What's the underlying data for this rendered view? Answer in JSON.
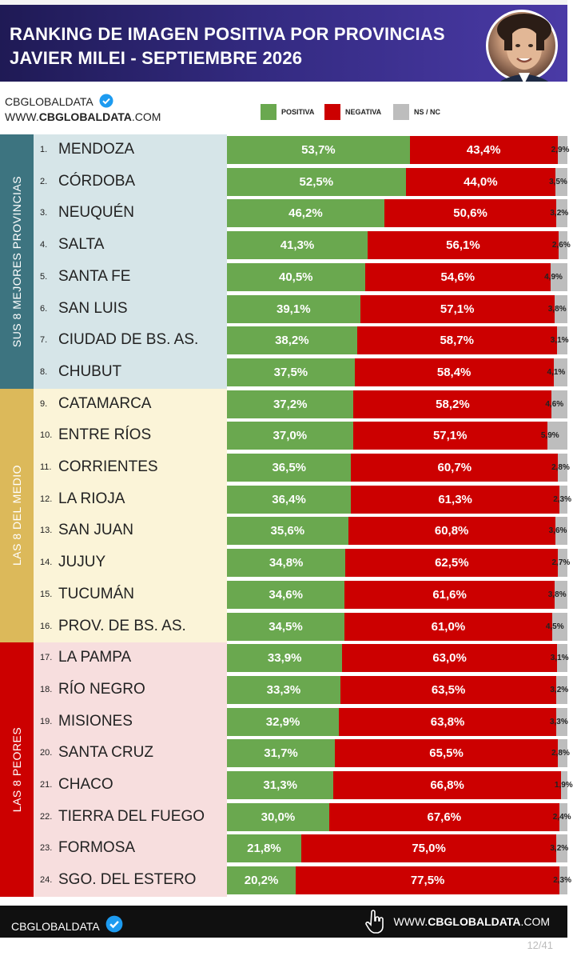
{
  "header": {
    "title_line1": "RANKING DE IMAGEN POSITIVA POR PROVINCIAS",
    "title_line2": "JAVIER MILEI - SEPTIEMBRE 2026"
  },
  "brand": {
    "name": "CBGLOBALDATA",
    "url_prefix": "WWW.",
    "url_bold": "CBGLOBALDATA",
    "url_suffix": ".COM"
  },
  "footer": {
    "brand": "CBGLOBALDATA",
    "url_prefix": "WWW.",
    "url_bold": "CBGLOBALDATA",
    "url_suffix": ".COM",
    "page": "12/41"
  },
  "colors": {
    "positive": "#6aa84f",
    "negative": "#cc0000",
    "nsnc": "#bdbdbd",
    "group_top": "#3d7480",
    "group_mid": "#dcb95a",
    "group_bottom": "#cc0000",
    "bg_top": "#d6e5e8",
    "bg_mid": "#fbf4d8",
    "bg_bottom": "#f7dede"
  },
  "chart_data": {
    "type": "bar",
    "stacked": true,
    "orientation": "horizontal",
    "title": "RANKING DE IMAGEN POSITIVA POR PROVINCIAS",
    "subtitle": "JAVIER MILEI - SEPTIEMBRE 2026",
    "legend": [
      "POSITIVA",
      "NEGATIVA",
      "NS / NC"
    ],
    "legend_position": "top",
    "groups": [
      {
        "label": "SUS 8 MEJORES PROVINCIAS",
        "from": 1,
        "to": 8
      },
      {
        "label": "LAS 8 DEL MEDIO",
        "from": 9,
        "to": 16
      },
      {
        "label": "LAS 8 PEORES",
        "from": 17,
        "to": 24
      }
    ],
    "rows": [
      {
        "rank": "1.",
        "name": "MENDOZA",
        "pos": 53.7,
        "neg": 43.4,
        "ns": 2.9,
        "pos_label": "53,7%",
        "neg_label": "43,4%",
        "ns_label": "2,9%"
      },
      {
        "rank": "2.",
        "name": "CÓRDOBA",
        "pos": 52.5,
        "neg": 44.0,
        "ns": 3.5,
        "pos_label": "52,5%",
        "neg_label": "44,0%",
        "ns_label": "3,5%"
      },
      {
        "rank": "3.",
        "name": "NEUQUÉN",
        "pos": 46.2,
        "neg": 50.6,
        "ns": 3.2,
        "pos_label": "46,2%",
        "neg_label": "50,6%",
        "ns_label": "3,2%"
      },
      {
        "rank": "4.",
        "name": "SALTA",
        "pos": 41.3,
        "neg": 56.1,
        "ns": 2.6,
        "pos_label": "41,3%",
        "neg_label": "56,1%",
        "ns_label": "2,6%"
      },
      {
        "rank": "5.",
        "name": "SANTA FE",
        "pos": 40.5,
        "neg": 54.6,
        "ns": 4.9,
        "pos_label": "40,5%",
        "neg_label": "54,6%",
        "ns_label": "4,9%"
      },
      {
        "rank": "6.",
        "name": "SAN LUIS",
        "pos": 39.1,
        "neg": 57.1,
        "ns": 3.8,
        "pos_label": "39,1%",
        "neg_label": "57,1%",
        "ns_label": "3,8%"
      },
      {
        "rank": "7.",
        "name": "CIUDAD DE BS. AS.",
        "pos": 38.2,
        "neg": 58.7,
        "ns": 3.1,
        "pos_label": "38,2%",
        "neg_label": "58,7%",
        "ns_label": "3,1%"
      },
      {
        "rank": "8.",
        "name": "CHUBUT",
        "pos": 37.5,
        "neg": 58.4,
        "ns": 4.1,
        "pos_label": "37,5%",
        "neg_label": "58,4%",
        "ns_label": "4,1%"
      },
      {
        "rank": "9.",
        "name": "CATAMARCA",
        "pos": 37.2,
        "neg": 58.2,
        "ns": 4.6,
        "pos_label": "37,2%",
        "neg_label": "58,2%",
        "ns_label": "4,6%"
      },
      {
        "rank": "10.",
        "name": "ENTRE RÍOS",
        "pos": 37.0,
        "neg": 57.1,
        "ns": 5.9,
        "pos_label": "37,0%",
        "neg_label": "57,1%",
        "ns_label": "5,9%"
      },
      {
        "rank": "11.",
        "name": "CORRIENTES",
        "pos": 36.5,
        "neg": 60.7,
        "ns": 2.8,
        "pos_label": "36,5%",
        "neg_label": "60,7%",
        "ns_label": "2,8%"
      },
      {
        "rank": "12.",
        "name": "LA RIOJA",
        "pos": 36.4,
        "neg": 61.3,
        "ns": 2.3,
        "pos_label": "36,4%",
        "neg_label": "61,3%",
        "ns_label": "2,3%"
      },
      {
        "rank": "13.",
        "name": "SAN JUAN",
        "pos": 35.6,
        "neg": 60.8,
        "ns": 3.6,
        "pos_label": "35,6%",
        "neg_label": "60,8%",
        "ns_label": "3,6%"
      },
      {
        "rank": "14.",
        "name": "JUJUY",
        "pos": 34.8,
        "neg": 62.5,
        "ns": 2.7,
        "pos_label": "34,8%",
        "neg_label": "62,5%",
        "ns_label": "2,7%"
      },
      {
        "rank": "15.",
        "name": "TUCUMÁN",
        "pos": 34.6,
        "neg": 61.6,
        "ns": 3.8,
        "pos_label": "34,6%",
        "neg_label": "61,6%",
        "ns_label": "3,8%"
      },
      {
        "rank": "16.",
        "name": "PROV. DE BS. AS.",
        "pos": 34.5,
        "neg": 61.0,
        "ns": 4.5,
        "pos_label": "34,5%",
        "neg_label": "61,0%",
        "ns_label": "4,5%"
      },
      {
        "rank": "17.",
        "name": "LA PAMPA",
        "pos": 33.9,
        "neg": 63.0,
        "ns": 3.1,
        "pos_label": "33,9%",
        "neg_label": "63,0%",
        "ns_label": "3,1%"
      },
      {
        "rank": "18.",
        "name": "RÍO NEGRO",
        "pos": 33.3,
        "neg": 63.5,
        "ns": 3.2,
        "pos_label": "33,3%",
        "neg_label": "63,5%",
        "ns_label": "3,2%"
      },
      {
        "rank": "19.",
        "name": "MISIONES",
        "pos": 32.9,
        "neg": 63.8,
        "ns": 3.3,
        "pos_label": "32,9%",
        "neg_label": "63,8%",
        "ns_label": "3,3%"
      },
      {
        "rank": "20.",
        "name": "SANTA CRUZ",
        "pos": 31.7,
        "neg": 65.5,
        "ns": 2.8,
        "pos_label": "31,7%",
        "neg_label": "65,5%",
        "ns_label": "2,8%"
      },
      {
        "rank": "21.",
        "name": "CHACO",
        "pos": 31.3,
        "neg": 66.8,
        "ns": 1.9,
        "pos_label": "31,3%",
        "neg_label": "66,8%",
        "ns_label": "1,9%"
      },
      {
        "rank": "22.",
        "name": "TIERRA DEL FUEGO",
        "pos": 30.0,
        "neg": 67.6,
        "ns": 2.4,
        "pos_label": "30,0%",
        "neg_label": "67,6%",
        "ns_label": "2,4%"
      },
      {
        "rank": "23.",
        "name": "FORMOSA",
        "pos": 21.8,
        "neg": 75.0,
        "ns": 3.2,
        "pos_label": "21,8%",
        "neg_label": "75,0%",
        "ns_label": "3,2%"
      },
      {
        "rank": "24.",
        "name": "SGO. DEL ESTERO",
        "pos": 20.2,
        "neg": 77.5,
        "ns": 2.3,
        "pos_label": "20,2%",
        "neg_label": "77,5%",
        "ns_label": "2,3%"
      }
    ]
  }
}
